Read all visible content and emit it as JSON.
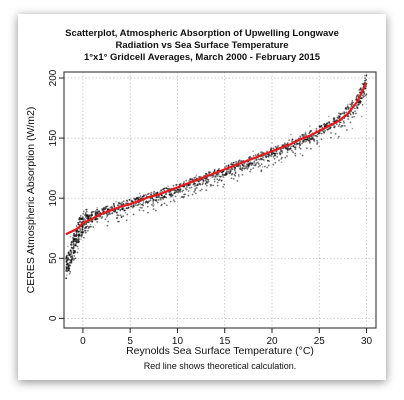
{
  "chart_data": {
    "type": "scatter",
    "title_lines": [
      "Scatterplot, Atmospheric Absorption of Upwelling Longwave",
      "Radiation vs Sea Surface Temperature",
      "1°x1° Gridcell Averages, March 2000 - February 2015"
    ],
    "xlabel": "Reynolds Sea Surface Temperature (°C)",
    "ylabel": "CERES Atmospheric Absorption (W/m2)",
    "caption": "Red line shows theoretical calculation.",
    "xlim": [
      -2,
      31
    ],
    "ylim": [
      -8,
      205
    ],
    "x_ticks": [
      0,
      5,
      10,
      15,
      20,
      25,
      30
    ],
    "y_ticks": [
      0,
      50,
      100,
      150,
      200
    ],
    "x_tick_labels": [
      "0",
      "5",
      "10",
      "15",
      "20",
      "25",
      "30"
    ],
    "y_tick_labels": [
      "0",
      "50",
      "100",
      "150",
      "200"
    ],
    "grid": true,
    "series": [
      {
        "color": "#000000",
        "trend": [
          [
            -1.8,
            42
          ],
          [
            -1.5,
            48
          ],
          [
            -1.2,
            55
          ],
          [
            -0.9,
            63
          ],
          [
            -0.6,
            70
          ],
          [
            -0.3,
            76
          ],
          [
            0,
            80
          ],
          [
            0.5,
            83
          ],
          [
            1,
            85
          ],
          [
            2,
            88
          ],
          [
            3,
            91
          ],
          [
            4,
            93
          ],
          [
            5,
            95
          ],
          [
            6,
            98
          ],
          [
            7,
            100
          ],
          [
            8,
            103
          ],
          [
            9,
            105
          ],
          [
            10,
            108
          ],
          [
            11,
            111
          ],
          [
            12,
            114
          ],
          [
            13,
            117
          ],
          [
            14,
            120
          ],
          [
            15,
            123
          ],
          [
            16,
            126
          ],
          [
            17,
            129
          ],
          [
            18,
            132
          ],
          [
            19,
            135
          ],
          [
            20,
            138
          ],
          [
            21,
            141
          ],
          [
            22,
            145
          ],
          [
            23,
            148
          ],
          [
            24,
            152
          ],
          [
            25,
            156
          ],
          [
            26,
            160
          ],
          [
            27,
            165
          ],
          [
            28,
            171
          ],
          [
            29,
            180
          ],
          [
            29.5,
            188
          ],
          [
            30,
            198
          ]
        ],
        "spread_points": [
          [
            -1.7,
            36
          ],
          [
            -1.6,
            60
          ],
          [
            -1.4,
            45
          ],
          [
            -1.3,
            68
          ],
          [
            -1.0,
            50
          ],
          [
            -0.8,
            72
          ],
          [
            -0.5,
            58
          ],
          [
            -0.4,
            82
          ],
          [
            -0.2,
            66
          ],
          [
            0.2,
            72
          ],
          [
            0.3,
            88
          ],
          [
            0.8,
            78
          ],
          [
            1.5,
            92
          ],
          [
            2.5,
            84
          ],
          [
            3.5,
            97
          ],
          [
            4.5,
            88
          ],
          [
            6,
            104
          ],
          [
            7.5,
            95
          ],
          [
            9,
            110
          ],
          [
            10.5,
            101
          ],
          [
            12,
            119
          ],
          [
            13.5,
            110
          ],
          [
            15,
            129
          ],
          [
            16.5,
            118
          ],
          [
            18,
            139
          ],
          [
            19,
            126
          ],
          [
            20,
            146
          ],
          [
            21,
            130
          ],
          [
            22,
            153
          ],
          [
            23,
            137
          ],
          [
            24,
            160
          ],
          [
            25,
            143
          ],
          [
            26,
            168
          ],
          [
            27,
            150
          ],
          [
            28,
            178
          ],
          [
            28.5,
            158
          ],
          [
            29.2,
            190
          ],
          [
            29.5,
            168
          ],
          [
            29.8,
            202
          ]
        ]
      },
      {
        "color": "#e41a1c",
        "curve": [
          [
            -1.8,
            70
          ],
          [
            -1,
            73
          ],
          [
            -0.5,
            75
          ],
          [
            0,
            79
          ],
          [
            0.5,
            81
          ],
          [
            1,
            83
          ],
          [
            2,
            87
          ],
          [
            3,
            90
          ],
          [
            4,
            93
          ],
          [
            5,
            95
          ],
          [
            6,
            98
          ],
          [
            7,
            101
          ],
          [
            8,
            103
          ],
          [
            9,
            106
          ],
          [
            10,
            109
          ],
          [
            11,
            112
          ],
          [
            12,
            115
          ],
          [
            13,
            118
          ],
          [
            14,
            121
          ],
          [
            15,
            124
          ],
          [
            16,
            127
          ],
          [
            17,
            130
          ],
          [
            18,
            133
          ],
          [
            19,
            136
          ],
          [
            20,
            139
          ],
          [
            21,
            142
          ],
          [
            22,
            145
          ],
          [
            23,
            149
          ],
          [
            24,
            152
          ],
          [
            25,
            156
          ],
          [
            26,
            160
          ],
          [
            27,
            164
          ],
          [
            28,
            170
          ],
          [
            29,
            180
          ],
          [
            29.5,
            188
          ],
          [
            30,
            196
          ]
        ]
      }
    ]
  }
}
